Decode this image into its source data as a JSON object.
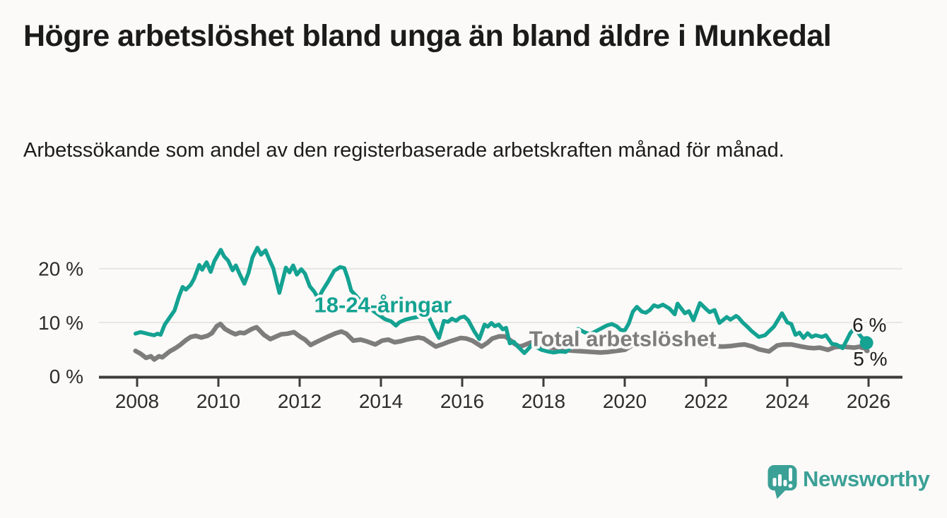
{
  "header": {
    "title": "Högre arbetslöshet bland unga än bland äldre i Munkedal",
    "subtitle": "Arbetssökande som andel av den registerbaserade arbetskraften månad för månad."
  },
  "footer": {
    "brand": "Newsworthy",
    "logo_color": "#3ba096"
  },
  "chart_data": {
    "type": "line",
    "title": "Högre arbetslöshet bland unga än bland äldre i Munkedal",
    "subtitle": "Arbetssökande som andel av den registerbaserade arbetskraften månad för månad.",
    "unit": "%",
    "grid": "horizontal",
    "colors": {
      "grid": "#e7e5e1",
      "axis": "#3c3c3c",
      "halo": "#fbfaf8",
      "tick_text": "#2d2d2d",
      "value_text": "#1d1d1d"
    },
    "x_axis": {
      "range": [
        2007.0,
        2026.85
      ],
      "ticks": [
        2008,
        2010,
        2012,
        2014,
        2016,
        2018,
        2020,
        2022,
        2024,
        2026
      ]
    },
    "y_axis": {
      "range": [
        0,
        25.5
      ],
      "ticks": [
        {
          "value": 0,
          "label": "0 %"
        },
        {
          "value": 10,
          "label": "10 %"
        },
        {
          "value": 20,
          "label": "20 %"
        }
      ]
    },
    "series": [
      {
        "id": "young",
        "name": "18-24-åringar",
        "color": "#14a292",
        "width": 5.5,
        "label_pos": {
          "year": 2014.05,
          "value": 13.3
        },
        "latest_label": "6 %",
        "end_label_side": "above",
        "end_dot": true,
        "points": [
          [
            2007.96,
            7.9
          ],
          [
            2008.08,
            8.2
          ],
          [
            2008.2,
            8.0
          ],
          [
            2008.3,
            7.8
          ],
          [
            2008.42,
            7.6
          ],
          [
            2008.5,
            7.9
          ],
          [
            2008.58,
            7.7
          ],
          [
            2008.68,
            9.6
          ],
          [
            2008.8,
            10.9
          ],
          [
            2008.92,
            12.2
          ],
          [
            2009.03,
            14.8
          ],
          [
            2009.12,
            16.6
          ],
          [
            2009.2,
            16.1
          ],
          [
            2009.32,
            17.0
          ],
          [
            2009.4,
            18.1
          ],
          [
            2009.53,
            20.7
          ],
          [
            2009.6,
            19.8
          ],
          [
            2009.71,
            21.2
          ],
          [
            2009.81,
            19.4
          ],
          [
            2009.9,
            21.4
          ],
          [
            2010.06,
            23.5
          ],
          [
            2010.14,
            22.3
          ],
          [
            2010.24,
            21.5
          ],
          [
            2010.35,
            19.7
          ],
          [
            2010.43,
            20.6
          ],
          [
            2010.53,
            18.9
          ],
          [
            2010.64,
            17.2
          ],
          [
            2010.74,
            19.2
          ],
          [
            2010.84,
            22.1
          ],
          [
            2010.96,
            23.9
          ],
          [
            2011.05,
            22.6
          ],
          [
            2011.16,
            23.4
          ],
          [
            2011.26,
            21.6
          ],
          [
            2011.35,
            20.1
          ],
          [
            2011.5,
            15.5
          ],
          [
            2011.66,
            20.2
          ],
          [
            2011.75,
            19.3
          ],
          [
            2011.84,
            20.6
          ],
          [
            2011.93,
            18.9
          ],
          [
            2012.04,
            19.9
          ],
          [
            2012.13,
            19.1
          ],
          [
            2012.25,
            16.7
          ],
          [
            2012.36,
            15.7
          ],
          [
            2012.46,
            14.4
          ],
          [
            2012.56,
            15.9
          ],
          [
            2012.7,
            17.6
          ],
          [
            2012.85,
            19.6
          ],
          [
            2013.0,
            20.3
          ],
          [
            2013.1,
            20.1
          ],
          [
            2013.18,
            18.3
          ],
          [
            2013.27,
            15.9
          ],
          [
            2013.37,
            15.1
          ],
          [
            2013.5,
            14.0
          ],
          [
            2013.65,
            12.8
          ],
          [
            2013.8,
            12.2
          ],
          [
            2013.95,
            11.4
          ],
          [
            2014.1,
            10.6
          ],
          [
            2014.25,
            10.2
          ],
          [
            2014.37,
            9.4
          ],
          [
            2014.45,
            10.0
          ],
          [
            2014.6,
            10.5
          ],
          [
            2014.75,
            10.8
          ],
          [
            2014.9,
            11.0
          ],
          [
            2015.05,
            11.2
          ],
          [
            2015.18,
            11.0
          ],
          [
            2015.3,
            9.0
          ],
          [
            2015.43,
            7.1
          ],
          [
            2015.55,
            10.3
          ],
          [
            2015.65,
            10.1
          ],
          [
            2015.75,
            10.7
          ],
          [
            2015.85,
            10.3
          ],
          [
            2015.95,
            10.9
          ],
          [
            2016.05,
            11.1
          ],
          [
            2016.15,
            10.4
          ],
          [
            2016.3,
            8.3
          ],
          [
            2016.42,
            6.9
          ],
          [
            2016.55,
            9.6
          ],
          [
            2016.63,
            9.2
          ],
          [
            2016.72,
            9.9
          ],
          [
            2016.8,
            9.3
          ],
          [
            2016.9,
            9.6
          ],
          [
            2017.0,
            8.7
          ],
          [
            2017.08,
            9.0
          ],
          [
            2017.17,
            6.1
          ],
          [
            2017.27,
            6.4
          ],
          [
            2017.37,
            5.5
          ],
          [
            2017.53,
            4.3
          ],
          [
            2017.63,
            5.1
          ],
          [
            2017.75,
            6.1
          ],
          [
            2017.85,
            5.3
          ],
          [
            2017.95,
            4.9
          ],
          [
            2018.1,
            4.6
          ],
          [
            2018.25,
            4.4
          ],
          [
            2018.4,
            4.6
          ],
          [
            2018.55,
            4.5
          ],
          [
            2018.7,
            5.5
          ],
          [
            2018.85,
            8.8
          ],
          [
            2019.0,
            8.2
          ],
          [
            2019.15,
            7.8
          ],
          [
            2019.3,
            8.4
          ],
          [
            2019.45,
            9.0
          ],
          [
            2019.55,
            9.4
          ],
          [
            2019.68,
            9.7
          ],
          [
            2019.8,
            9.3
          ],
          [
            2019.9,
            8.6
          ],
          [
            2020.0,
            8.5
          ],
          [
            2020.1,
            9.8
          ],
          [
            2020.2,
            12.0
          ],
          [
            2020.3,
            12.9
          ],
          [
            2020.42,
            12.0
          ],
          [
            2020.52,
            11.8
          ],
          [
            2020.62,
            12.3
          ],
          [
            2020.72,
            13.2
          ],
          [
            2020.82,
            12.9
          ],
          [
            2020.94,
            13.3
          ],
          [
            2021.1,
            12.6
          ],
          [
            2021.23,
            11.5
          ],
          [
            2021.3,
            13.5
          ],
          [
            2021.48,
            11.7
          ],
          [
            2021.58,
            12.1
          ],
          [
            2021.69,
            10.4
          ],
          [
            2021.85,
            13.6
          ],
          [
            2022.0,
            12.5
          ],
          [
            2022.09,
            11.9
          ],
          [
            2022.21,
            12.3
          ],
          [
            2022.33,
            9.9
          ],
          [
            2022.51,
            11.0
          ],
          [
            2022.6,
            10.5
          ],
          [
            2022.74,
            11.2
          ],
          [
            2022.8,
            10.9
          ],
          [
            2022.9,
            10.0
          ],
          [
            2023.03,
            9.1
          ],
          [
            2023.12,
            8.4
          ],
          [
            2023.3,
            7.3
          ],
          [
            2023.45,
            7.6
          ],
          [
            2023.67,
            9.2
          ],
          [
            2023.87,
            11.7
          ],
          [
            2024.0,
            10.0
          ],
          [
            2024.1,
            9.7
          ],
          [
            2024.2,
            7.7
          ],
          [
            2024.3,
            8.1
          ],
          [
            2024.4,
            7.1
          ],
          [
            2024.5,
            8.0
          ],
          [
            2024.6,
            7.3
          ],
          [
            2024.7,
            7.6
          ],
          [
            2024.85,
            7.3
          ],
          [
            2024.95,
            7.6
          ],
          [
            2025.1,
            6.0
          ],
          [
            2025.2,
            5.9
          ],
          [
            2025.3,
            5.5
          ],
          [
            2025.36,
            5.2
          ],
          [
            2025.47,
            6.8
          ],
          [
            2025.55,
            8.0
          ],
          [
            2025.66,
            9.0
          ],
          [
            2025.8,
            7.5
          ],
          [
            2025.95,
            6.2
          ]
        ]
      },
      {
        "id": "total",
        "name": "Total arbetslöshet",
        "color": "#7d7d7d",
        "width": 6.5,
        "label_pos": {
          "year": 2019.95,
          "value": 7.0
        },
        "latest_label": "5 %",
        "end_label_side": "below",
        "end_dot": false,
        "points": [
          [
            2007.96,
            4.7
          ],
          [
            2008.08,
            4.2
          ],
          [
            2008.22,
            3.4
          ],
          [
            2008.34,
            3.7
          ],
          [
            2008.42,
            3.1
          ],
          [
            2008.54,
            3.7
          ],
          [
            2008.62,
            3.5
          ],
          [
            2008.8,
            4.6
          ],
          [
            2008.94,
            5.2
          ],
          [
            2009.06,
            5.8
          ],
          [
            2009.2,
            6.7
          ],
          [
            2009.32,
            7.3
          ],
          [
            2009.44,
            7.5
          ],
          [
            2009.58,
            7.2
          ],
          [
            2009.73,
            7.5
          ],
          [
            2009.84,
            8.0
          ],
          [
            2009.96,
            9.3
          ],
          [
            2010.05,
            9.7
          ],
          [
            2010.16,
            8.8
          ],
          [
            2010.3,
            8.2
          ],
          [
            2010.42,
            7.8
          ],
          [
            2010.53,
            8.1
          ],
          [
            2010.64,
            8.0
          ],
          [
            2010.83,
            8.8
          ],
          [
            2010.94,
            9.1
          ],
          [
            2011.12,
            7.7
          ],
          [
            2011.28,
            6.9
          ],
          [
            2011.4,
            7.3
          ],
          [
            2011.55,
            7.8
          ],
          [
            2011.7,
            7.9
          ],
          [
            2011.86,
            8.2
          ],
          [
            2012.02,
            7.3
          ],
          [
            2012.13,
            6.8
          ],
          [
            2012.27,
            5.8
          ],
          [
            2012.4,
            6.3
          ],
          [
            2012.54,
            6.8
          ],
          [
            2012.68,
            7.3
          ],
          [
            2012.89,
            8.0
          ],
          [
            2013.03,
            8.3
          ],
          [
            2013.15,
            7.9
          ],
          [
            2013.32,
            6.6
          ],
          [
            2013.5,
            6.8
          ],
          [
            2013.64,
            6.5
          ],
          [
            2013.86,
            5.9
          ],
          [
            2014.03,
            6.6
          ],
          [
            2014.18,
            6.8
          ],
          [
            2014.34,
            6.3
          ],
          [
            2014.49,
            6.5
          ],
          [
            2014.63,
            6.8
          ],
          [
            2014.92,
            7.2
          ],
          [
            2015.05,
            7.0
          ],
          [
            2015.21,
            6.2
          ],
          [
            2015.35,
            5.5
          ],
          [
            2015.5,
            5.9
          ],
          [
            2015.67,
            6.4
          ],
          [
            2015.84,
            6.8
          ],
          [
            2015.96,
            7.1
          ],
          [
            2016.1,
            7.0
          ],
          [
            2016.25,
            6.6
          ],
          [
            2016.48,
            5.5
          ],
          [
            2016.62,
            6.2
          ],
          [
            2016.74,
            7.0
          ],
          [
            2016.91,
            7.4
          ],
          [
            2017.06,
            7.4
          ],
          [
            2017.2,
            6.6
          ],
          [
            2017.29,
            6.0
          ],
          [
            2017.41,
            5.5
          ],
          [
            2017.5,
            5.7
          ],
          [
            2017.7,
            6.3
          ],
          [
            2017.85,
            6.0
          ],
          [
            2018.0,
            5.7
          ],
          [
            2018.2,
            5.3
          ],
          [
            2018.4,
            5.0
          ],
          [
            2018.6,
            4.8
          ],
          [
            2018.8,
            4.7
          ],
          [
            2019.0,
            4.6
          ],
          [
            2019.2,
            4.5
          ],
          [
            2019.4,
            4.4
          ],
          [
            2019.6,
            4.5
          ],
          [
            2019.8,
            4.7
          ],
          [
            2020.0,
            4.9
          ],
          [
            2020.2,
            5.8
          ],
          [
            2020.35,
            6.6
          ],
          [
            2020.5,
            6.9
          ],
          [
            2020.7,
            7.0
          ],
          [
            2020.9,
            6.9
          ],
          [
            2021.1,
            6.8
          ],
          [
            2021.3,
            6.6
          ],
          [
            2021.5,
            6.3
          ],
          [
            2021.7,
            6.1
          ],
          [
            2021.9,
            5.9
          ],
          [
            2022.1,
            5.7
          ],
          [
            2022.25,
            5.6
          ],
          [
            2022.4,
            5.5
          ],
          [
            2022.6,
            5.6
          ],
          [
            2022.8,
            5.8
          ],
          [
            2022.95,
            5.9
          ],
          [
            2023.15,
            5.5
          ],
          [
            2023.3,
            5.0
          ],
          [
            2023.55,
            4.6
          ],
          [
            2023.75,
            5.7
          ],
          [
            2023.9,
            5.9
          ],
          [
            2024.1,
            5.9
          ],
          [
            2024.35,
            5.5
          ],
          [
            2024.5,
            5.3
          ],
          [
            2024.65,
            5.2
          ],
          [
            2024.8,
            5.3
          ],
          [
            2025.0,
            4.9
          ],
          [
            2025.17,
            5.4
          ],
          [
            2025.33,
            5.5
          ],
          [
            2025.5,
            5.4
          ],
          [
            2025.65,
            5.3
          ],
          [
            2025.8,
            5.5
          ],
          [
            2025.9,
            4.9
          ],
          [
            2025.97,
            4.7
          ]
        ]
      }
    ]
  }
}
